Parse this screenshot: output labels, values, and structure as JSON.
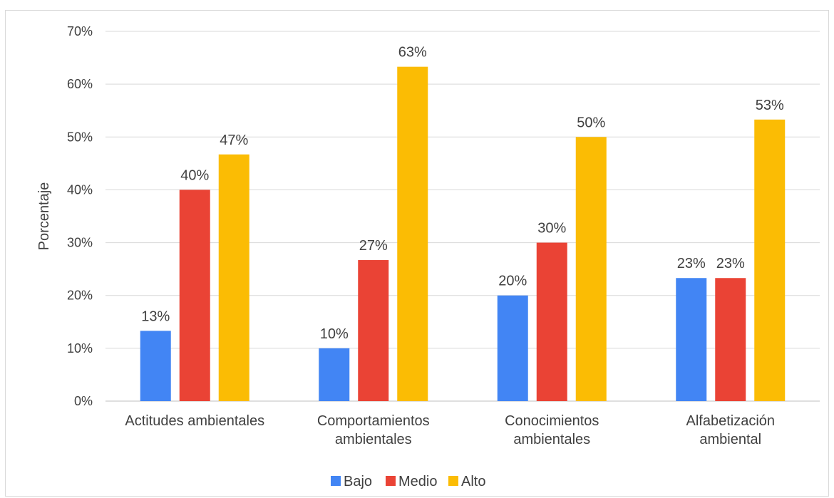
{
  "chart_data": {
    "type": "bar",
    "title": "",
    "xlabel": "",
    "ylabel": "Porcentaje",
    "ylim": [
      0,
      70
    ],
    "yticks": [
      0,
      10,
      20,
      30,
      40,
      50,
      60,
      70
    ],
    "ytick_suffix": "%",
    "grid": true,
    "legend": "bottom",
    "categories": [
      [
        "Actitudes ambientales"
      ],
      [
        "Comportamientos",
        "ambientales"
      ],
      [
        "Conocimientos",
        "ambientales"
      ],
      [
        "Alfabetización",
        "ambiental"
      ]
    ],
    "series": [
      {
        "name": "Bajo",
        "color": "#4285f4",
        "values": [
          13.3,
          10,
          20,
          23.3
        ],
        "labels": [
          "13%",
          "10%",
          "20%",
          "23%"
        ]
      },
      {
        "name": "Medio",
        "color": "#ea4335",
        "values": [
          40,
          26.7,
          30,
          23.3
        ],
        "labels": [
          "40%",
          "27%",
          "30%",
          "23%"
        ]
      },
      {
        "name": "Alto",
        "color": "#fbbc04",
        "values": [
          46.7,
          63.3,
          50,
          53.3
        ],
        "labels": [
          "47%",
          "63%",
          "50%",
          "53%"
        ]
      }
    ]
  }
}
